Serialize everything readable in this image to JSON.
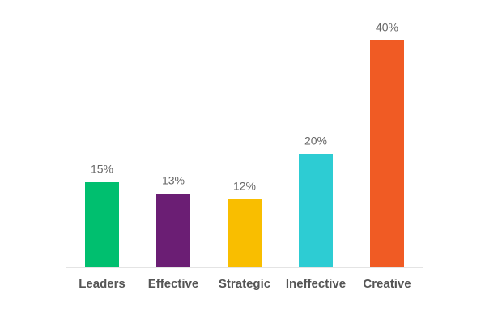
{
  "chart_data": {
    "type": "bar",
    "categories": [
      "Leaders",
      "Effective",
      "Strategic",
      "Ineffective",
      "Creative"
    ],
    "values": [
      15,
      13,
      12,
      20,
      40
    ],
    "value_labels": [
      "15%",
      "13%",
      "12%",
      "20%",
      "40%"
    ],
    "colors": [
      "#00bf6f",
      "#6b1e74",
      "#f9be00",
      "#2dccd3",
      "#f05b24"
    ]
  }
}
